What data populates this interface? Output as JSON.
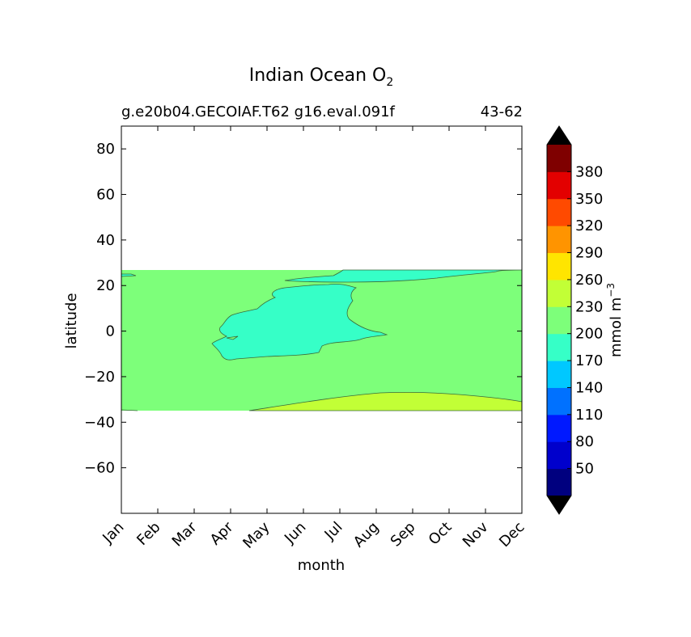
{
  "title": "Indian Ocean O",
  "title_subscript": "2",
  "subtitle_left": "g.e20b04.GECOIAF.T62 g16.eval.091f",
  "subtitle_right": "43-62",
  "chart_data": {
    "type": "contourf",
    "xlabel": "month",
    "ylabel": "latitude",
    "x_categories": [
      "Jan",
      "Feb",
      "Mar",
      "Apr",
      "May",
      "Jun",
      "Jul",
      "Aug",
      "Sep",
      "Oct",
      "Nov",
      "Dec"
    ],
    "ylim": [
      -80,
      90
    ],
    "y_ticks": [
      80,
      60,
      40,
      20,
      0,
      -20,
      -40,
      -60
    ],
    "y_tick_labels": [
      "80",
      "60",
      "40",
      "20",
      "0",
      "−20",
      "−40",
      "−60"
    ],
    "data_lat_range": [
      -34,
      27
    ],
    "regions": [
      {
        "level": "200-230",
        "color": "#7dff7a",
        "description": "background field"
      },
      {
        "level": "170-200",
        "color": "#36ffc7",
        "description": "central pool Apr-Aug, ~-12 to 21"
      },
      {
        "level": "170-200",
        "color": "#36ffc7",
        "description": "northern band Jul-Nov, ~22 to 27"
      },
      {
        "level": "230-260",
        "color": "#c2ff36",
        "description": "southern band May-Dec, ~-34 to -27"
      }
    ],
    "colorbar": {
      "label": "mmol m",
      "label_superscript": "−3",
      "tick_labels": [
        "50",
        "80",
        "110",
        "140",
        "170",
        "200",
        "230",
        "260",
        "290",
        "320",
        "350",
        "380"
      ],
      "colors": [
        "#00007f",
        "#0000cc",
        "#0019ff",
        "#0071ff",
        "#00c8ff",
        "#36ffc7",
        "#7dff7a",
        "#c2ff36",
        "#ffe500",
        "#ff9400",
        "#ff4a00",
        "#e30000",
        "#7f0000"
      ],
      "extend": "both",
      "extend_color": "#000000"
    }
  }
}
